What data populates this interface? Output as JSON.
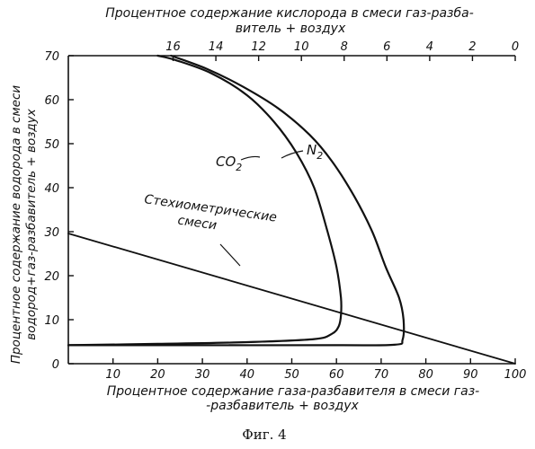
{
  "chart_data": {
    "type": "line",
    "top_axis_label_line1": "Процентное содержание кислорода в смеси газ-разба-",
    "top_axis_label_line2": "витель + воздух",
    "xlabel_line1": "Процентное содержание газа-разбавителя в смеси газ-",
    "xlabel_line2": "-разбавитель + воздух",
    "ylabel_line1": "Процентное содержание водорода в смеси",
    "ylabel_line2": "водород+газ-разбавитель + воздух",
    "xlim": [
      0,
      100
    ],
    "ylim": [
      0,
      70
    ],
    "top_axis_range": [
      20.9,
      0
    ],
    "x_ticks": [
      "10",
      "20",
      "30",
      "40",
      "50",
      "60",
      "70",
      "80",
      "90",
      "100"
    ],
    "y_ticks": [
      "0",
      "10",
      "20",
      "30",
      "40",
      "50",
      "60",
      "70"
    ],
    "top_ticks": [
      "16",
      "14",
      "12",
      "10",
      "8",
      "6",
      "4",
      "2",
      "0"
    ],
    "series": [
      {
        "name": "CO2",
        "label_main": "CO",
        "label_sub": "2",
        "points": [
          [
            0,
            4.2
          ],
          [
            20,
            4.5
          ],
          [
            40,
            4.9
          ],
          [
            55,
            5.6
          ],
          [
            59,
            6.8
          ],
          [
            60.5,
            8.5
          ],
          [
            61,
            11
          ],
          [
            61,
            15
          ],
          [
            60,
            22
          ],
          [
            58,
            30
          ],
          [
            55,
            40
          ],
          [
            51,
            48
          ],
          [
            46,
            55
          ],
          [
            40,
            61
          ],
          [
            32,
            66
          ],
          [
            24,
            69
          ],
          [
            20,
            70
          ]
        ]
      },
      {
        "name": "N2",
        "label_main": "N",
        "label_sub": "2",
        "points": [
          [
            0,
            4.2
          ],
          [
            30,
            4.2
          ],
          [
            60,
            4.2
          ],
          [
            73,
            4.3
          ],
          [
            74.8,
            5.5
          ],
          [
            75,
            10
          ],
          [
            74,
            15
          ],
          [
            71,
            22
          ],
          [
            68,
            30
          ],
          [
            64,
            38
          ],
          [
            59,
            46
          ],
          [
            54,
            52
          ],
          [
            47,
            58
          ],
          [
            39,
            63
          ],
          [
            31,
            67
          ],
          [
            23,
            70
          ]
        ]
      },
      {
        "name": "Стехиометрические смеси",
        "label_line1": "Стехиометрические",
        "label_line2": "смеси",
        "points": [
          [
            0,
            29.6
          ],
          [
            100,
            0
          ]
        ]
      }
    ],
    "caption": "Фиг. 4"
  }
}
